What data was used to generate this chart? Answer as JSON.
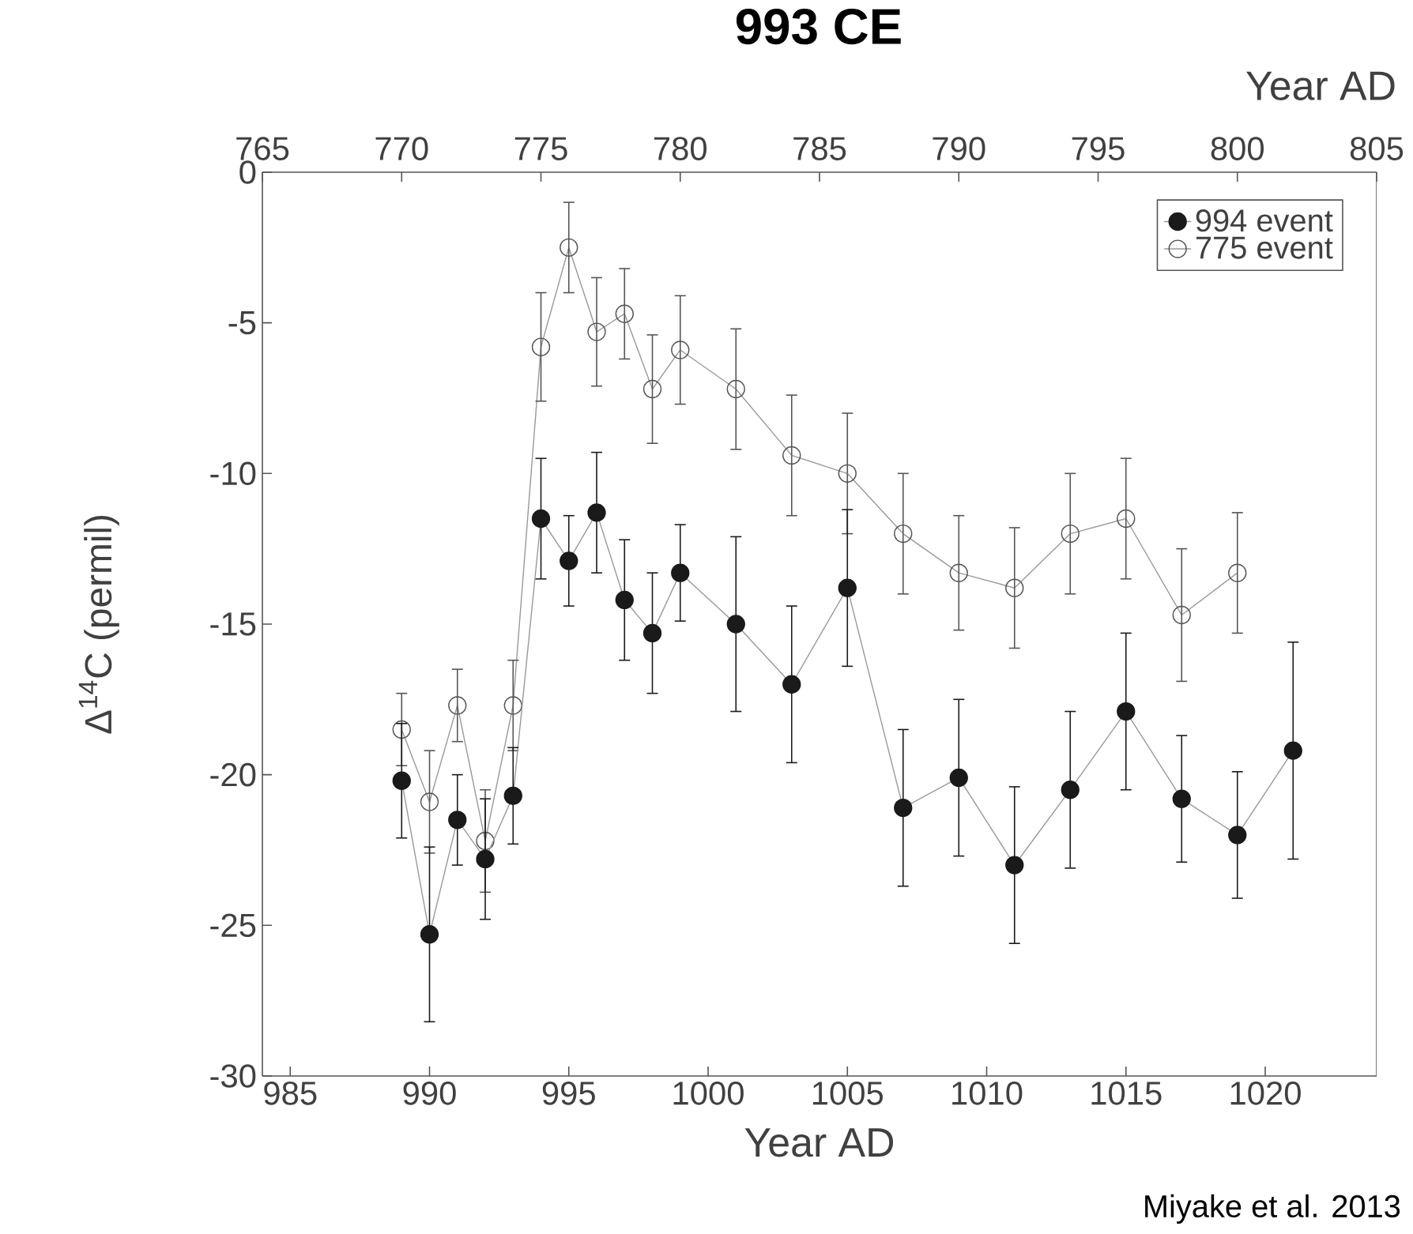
{
  "chart_data": {
    "type": "line",
    "title": "993 CE",
    "xlabel": "Year AD",
    "x2label": "Year AD",
    "ylabel": "Δ$^{14}$C (permil)",
    "annotations": [
      "Miyake et al. 2013"
    ],
    "xlim": [
      984,
      1024
    ],
    "xticks": [
      985,
      990,
      995,
      1000,
      1005,
      1010,
      1015,
      1020
    ],
    "x2lim": [
      765,
      805
    ],
    "x2ticks": [
      765,
      770,
      775,
      780,
      785,
      790,
      795,
      800,
      805
    ],
    "ylim": [
      -30,
      0
    ],
    "yticks": [
      -30,
      -25,
      -20,
      -15,
      -10,
      -5,
      0
    ],
    "legend": "top right",
    "series": [
      {
        "name": "994 event",
        "color": "#1a1a1a",
        "marker": "circle",
        "x": [
          989,
          990,
          991,
          992,
          993,
          994,
          995,
          996,
          997,
          998,
          999,
          1001,
          1003,
          1005,
          1007,
          1009,
          1011,
          1013,
          1015,
          1017,
          1019,
          1021
        ],
        "values": [
          -20.2,
          -25.3,
          -21.5,
          -22.8,
          -20.7,
          -11.5,
          -12.9,
          -11.3,
          -14.2,
          -15.3,
          -13.3,
          -15.0,
          -17.0,
          -13.8,
          -21.1,
          -20.1,
          -23.0,
          -20.5,
          -17.9,
          -20.8,
          -22.0,
          -19.2
        ],
        "errors": [
          1.9,
          2.9,
          1.5,
          2.0,
          1.6,
          2.0,
          1.5,
          2.0,
          2.0,
          2.0,
          1.6,
          2.9,
          2.6,
          2.6,
          2.6,
          2.6,
          2.6,
          2.6,
          2.6,
          2.1,
          2.1,
          3.6
        ]
      },
      {
        "name": "775 event",
        "color": "#555555",
        "marker": "open circle",
        "axis": "x2",
        "x": [
          770,
          771,
          772,
          773,
          774,
          775,
          776,
          777,
          778,
          779,
          780,
          782,
          784,
          786,
          788,
          790,
          792,
          794,
          796,
          798,
          800
        ],
        "values": [
          -18.5,
          -20.9,
          -17.7,
          -22.2,
          -17.7,
          -5.8,
          -2.5,
          -5.3,
          -4.7,
          -7.2,
          -5.9,
          -7.2,
          -9.4,
          -10.0,
          -12.0,
          -13.3,
          -13.8,
          -12.0,
          -11.5,
          -14.7,
          -13.3
        ],
        "errors": [
          1.2,
          1.7,
          1.2,
          1.7,
          1.5,
          1.8,
          1.5,
          1.8,
          1.5,
          1.8,
          1.8,
          2.0,
          2.0,
          2.0,
          2.0,
          1.9,
          2.0,
          2.0,
          2.0,
          2.2,
          2.0
        ]
      }
    ]
  }
}
